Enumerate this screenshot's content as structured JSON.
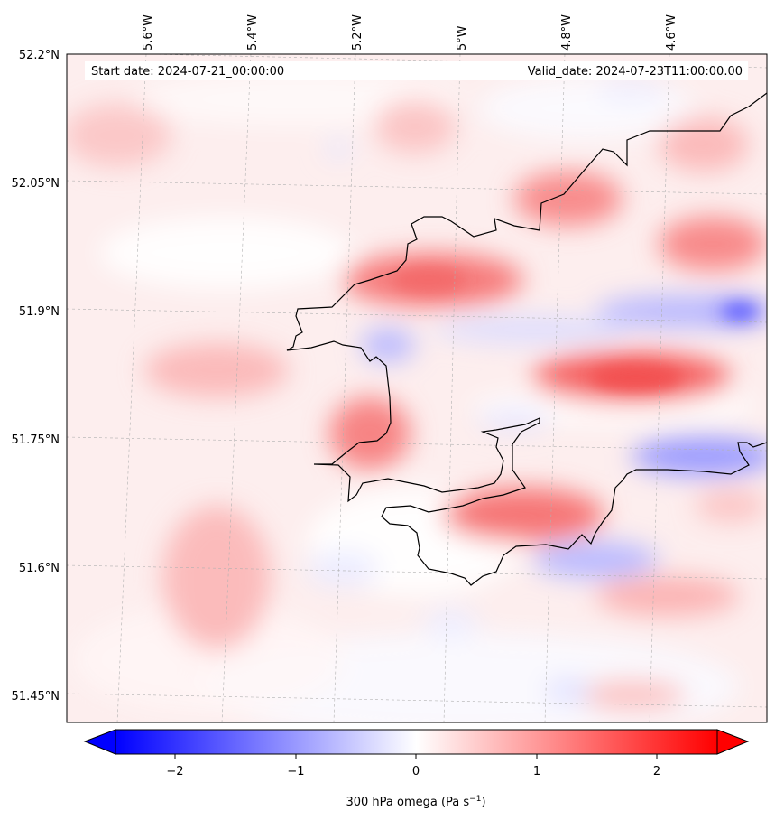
{
  "map": {
    "start_date": "Start date: 2024-07-21_00:00:00",
    "valid_date": "Valid_date: 2024-07-23T11:00:00.00",
    "lon_labels": [
      "5.6°W",
      "5.4°W",
      "5.2°W",
      "5°W",
      "4.8°W",
      "4.6°W"
    ],
    "lat_labels": [
      "52.2°N",
      "52.05°N",
      "51.9°N",
      "51.75°N",
      "51.6°N",
      "51.45°N"
    ],
    "field": "300 hPa omega",
    "colormap": "bwr"
  },
  "colorbar": {
    "label_main": "300 hPa omega (Pa s",
    "label_exp": "−1",
    "label_close": ")",
    "ticks": [
      "−2",
      "−1",
      "0",
      "1",
      "2"
    ],
    "range": [
      -2.5,
      2.5
    ],
    "extend": "both",
    "colors": {
      "min": "#0000ff",
      "mid": "#ffffff",
      "max": "#ff0000"
    }
  }
}
